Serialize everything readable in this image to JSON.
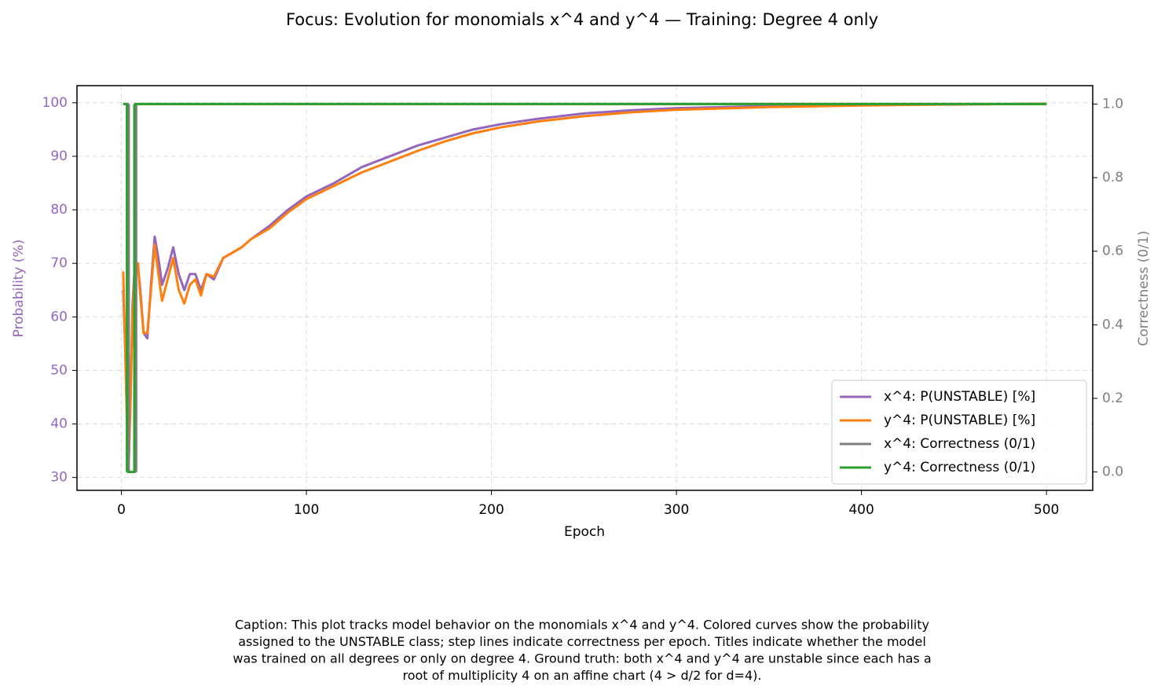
{
  "chart_data": {
    "type": "line",
    "title": "Focus: Evolution for monomials x^4 and y^4 — Training: Degree 4 only",
    "xlabel": "Epoch",
    "ylabel": "Probability (%)",
    "y2label": "Correctness (0/1)",
    "ylabel_color": "#9467bd",
    "y2label_color": "#7f7f7f",
    "xlim": [
      -24,
      525
    ],
    "xticks": [
      0,
      100,
      200,
      300,
      400,
      500
    ],
    "ylim": [
      27.6,
      103.2
    ],
    "yticks": [
      30,
      40,
      50,
      60,
      70,
      80,
      90,
      100
    ],
    "y2lim": [
      -0.05,
      1.05
    ],
    "y2ticks": [
      {
        "value": 0,
        "label": "0.0"
      },
      0.2,
      0.4,
      0.6,
      0.8,
      {
        "value": 1,
        "label": "1.0"
      }
    ],
    "grid": true,
    "legend": "lower right",
    "x": [
      1,
      2,
      3,
      4,
      5,
      6,
      7,
      8,
      9,
      10,
      12,
      14,
      16,
      18,
      20,
      22,
      25,
      28,
      31,
      34,
      37,
      40,
      43,
      46,
      50,
      55,
      60,
      65,
      70,
      80,
      90,
      100,
      115,
      130,
      145,
      160,
      175,
      190,
      205,
      225,
      250,
      275,
      300,
      350,
      400,
      450,
      500
    ],
    "series": [
      {
        "name": "x^4: P(UNSTABLE) [%]",
        "color": "#9467bd",
        "values": [
          65,
          55,
          42,
          33,
          45,
          62,
          68,
          69,
          69,
          66,
          57,
          56,
          66,
          75,
          71,
          66,
          69,
          73,
          68,
          65,
          68,
          68,
          65,
          68,
          67,
          71,
          72,
          73,
          74.5,
          77,
          80,
          82.5,
          85,
          88,
          90,
          92,
          93.5,
          95,
          96,
          97,
          98,
          98.6,
          99,
          99.4,
          99.6,
          99.7,
          99.8
        ]
      },
      {
        "name": "y^4: P(UNSTABLE) [%]",
        "color": "#ff7f0e",
        "values": [
          68.5,
          55,
          40,
          34,
          46,
          60,
          67,
          70,
          70,
          65,
          57,
          57,
          65,
          73.5,
          68,
          63,
          67,
          71,
          65,
          62.5,
          66,
          67,
          64,
          68,
          67.5,
          71,
          72,
          73,
          74.5,
          76.5,
          79.5,
          82,
          84.5,
          87,
          89,
          91,
          92.8,
          94.3,
          95.4,
          96.5,
          97.5,
          98.2,
          98.7,
          99.2,
          99.5,
          99.7,
          99.8
        ]
      },
      {
        "name": "x^4: Correctness (0/1)",
        "color": "#7f7f7f",
        "axis": "y2",
        "step": true,
        "values": [
          1,
          1,
          1,
          0,
          0,
          0,
          0,
          1,
          1,
          1,
          1,
          1,
          1,
          1,
          1,
          1,
          1,
          1,
          1,
          1,
          1,
          1,
          1,
          1,
          1,
          1,
          1,
          1,
          1,
          1,
          1,
          1,
          1,
          1,
          1,
          1,
          1,
          1,
          1,
          1,
          1,
          1,
          1,
          1,
          1,
          1,
          1
        ]
      },
      {
        "name": "y^4: Correctness (0/1)",
        "color": "#2ca02c",
        "axis": "y2",
        "step": true,
        "values": [
          1,
          1,
          0,
          0,
          0,
          0,
          1,
          1,
          1,
          1,
          1,
          1,
          1,
          1,
          1,
          1,
          1,
          1,
          1,
          1,
          1,
          1,
          1,
          1,
          1,
          1,
          1,
          1,
          1,
          1,
          1,
          1,
          1,
          1,
          1,
          1,
          1,
          1,
          1,
          1,
          1,
          1,
          1,
          1,
          1,
          1,
          1
        ]
      }
    ],
    "caption": [
      "Caption: This plot tracks model behavior on the monomials x^4 and y^4. Colored curves show the probability",
      "assigned to the UNSTABLE class; step lines indicate correctness per epoch. Titles indicate whether the model",
      "was trained on all degrees or only on degree 4. Ground truth: both x^4 and y^4 are unstable since each has a",
      "root of multiplicity 4 on an affine chart (4 > d/2 for d=4)."
    ]
  }
}
